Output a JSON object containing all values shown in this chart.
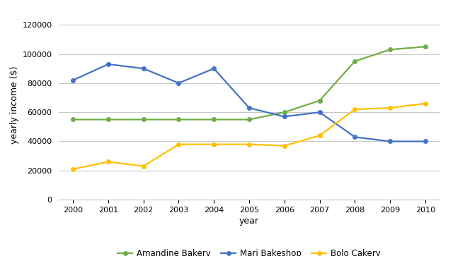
{
  "years": [
    2000,
    2001,
    2002,
    2003,
    2004,
    2005,
    2006,
    2007,
    2008,
    2009,
    2010
  ],
  "amandine": [
    55000,
    55000,
    55000,
    55000,
    55000,
    55000,
    60000,
    68000,
    95000,
    103000,
    105000
  ],
  "mari": [
    82000,
    93000,
    90000,
    80000,
    90000,
    63000,
    57000,
    60000,
    43000,
    40000,
    40000
  ],
  "bolo": [
    21000,
    26000,
    23000,
    38000,
    38000,
    38000,
    37000,
    44000,
    62000,
    63000,
    66000
  ],
  "amandine_color": "#70ad47",
  "mari_color": "#4472c4",
  "bolo_color": "#ffc000",
  "amandine_label": "Amandine Bakery",
  "mari_label": "Mari Bakeshop",
  "bolo_label": "Bolo Cakery",
  "xlabel": "year",
  "ylabel": "yearly income ($)",
  "ylim": [
    0,
    130000
  ],
  "yticks": [
    0,
    20000,
    40000,
    60000,
    80000,
    100000,
    120000
  ],
  "background_color": "#ffffff",
  "grid_color": "#c8c8c8"
}
